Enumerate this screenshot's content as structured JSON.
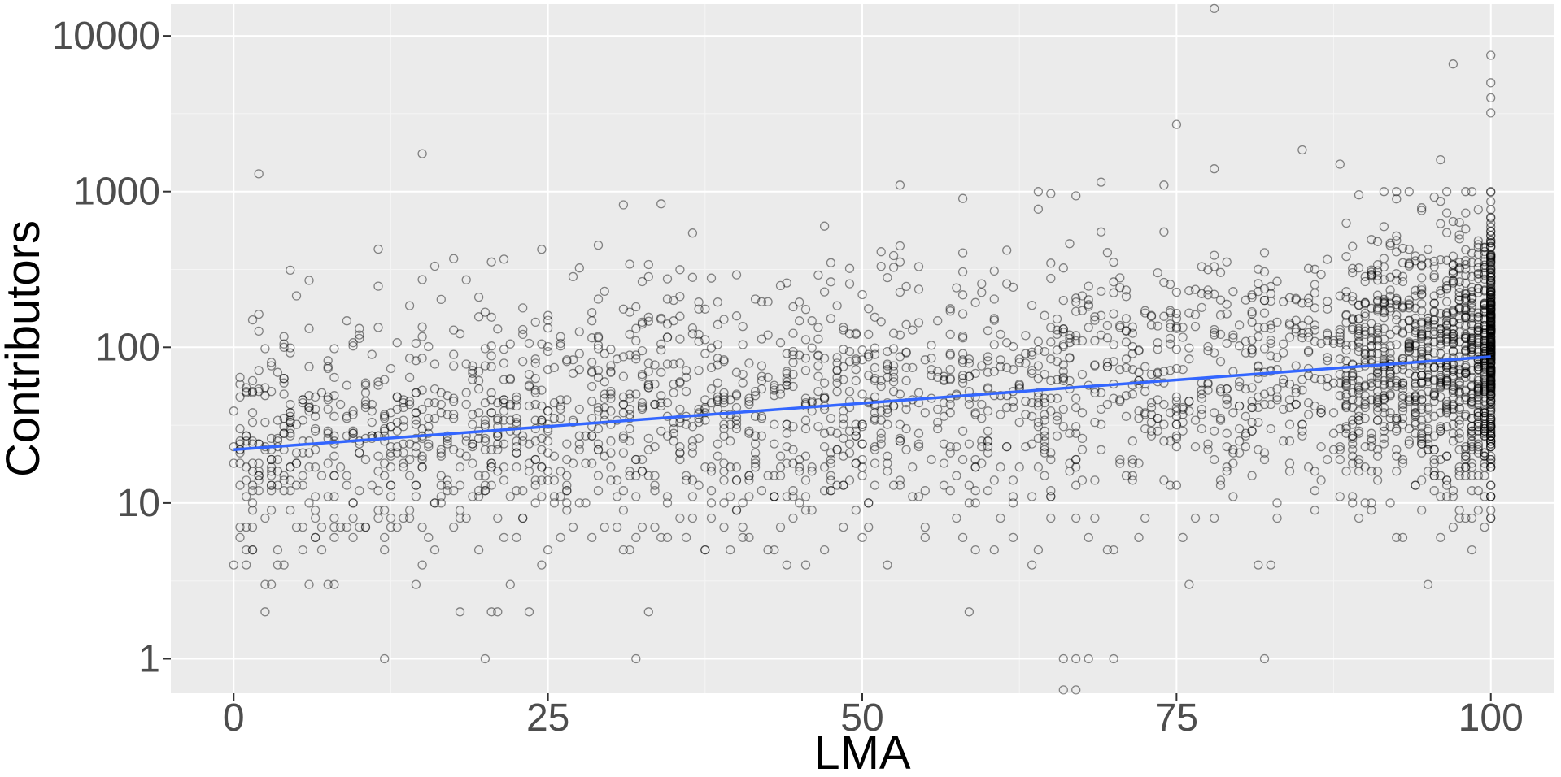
{
  "chart_data": {
    "type": "scatter",
    "xlabel": "LMA",
    "ylabel": "Contributors",
    "x_ticks": [
      0,
      25,
      50,
      75,
      100
    ],
    "x_tick_labels": [
      "0",
      "25",
      "50",
      "75",
      "100"
    ],
    "y_ticks": [
      1,
      10,
      100,
      1000,
      10000
    ],
    "y_tick_labels": [
      "1",
      "10",
      "100",
      "1000",
      "10000"
    ],
    "xlim": [
      -5,
      105
    ],
    "ylim": [
      0.6,
      16000
    ],
    "y_scale": "log10",
    "grid": true,
    "legend": "none",
    "point_count": 3200,
    "trend_line": {
      "type": "linear",
      "x": [
        0,
        100
      ],
      "y": [
        22,
        87
      ]
    },
    "highlight_points": [
      {
        "x": 2,
        "y": 1300
      },
      {
        "x": 15,
        "y": 1750
      },
      {
        "x": 53,
        "y": 1100
      },
      {
        "x": 65,
        "y": 970
      },
      {
        "x": 67,
        "y": 940
      },
      {
        "x": 69,
        "y": 1150
      },
      {
        "x": 74,
        "y": 1100
      },
      {
        "x": 75,
        "y": 2700
      },
      {
        "x": 78,
        "y": 1400
      },
      {
        "x": 78,
        "y": 15000
      },
      {
        "x": 85,
        "y": 1850
      },
      {
        "x": 88,
        "y": 1500
      },
      {
        "x": 96,
        "y": 1600
      },
      {
        "x": 97,
        "y": 6600
      },
      {
        "x": 100,
        "y": 7500
      },
      {
        "x": 100,
        "y": 5000
      },
      {
        "x": 100,
        "y": 4000
      },
      {
        "x": 100,
        "y": 3200
      },
      {
        "x": 12,
        "y": 1
      },
      {
        "x": 20,
        "y": 1
      },
      {
        "x": 32,
        "y": 1
      },
      {
        "x": 66,
        "y": 1
      },
      {
        "x": 67,
        "y": 1
      },
      {
        "x": 70,
        "y": 1
      },
      {
        "x": 82,
        "y": 1
      },
      {
        "x": 66,
        "y": 0.63
      },
      {
        "x": 67,
        "y": 0.63
      }
    ]
  },
  "colors": {
    "panel": "#ebebeb",
    "grid_major": "#ffffff",
    "grid_minor": "#f5f5f5",
    "point": "#000000",
    "trend": "#3366ff",
    "tick_text": "#4d4d4d",
    "tick_mark": "#333333"
  }
}
